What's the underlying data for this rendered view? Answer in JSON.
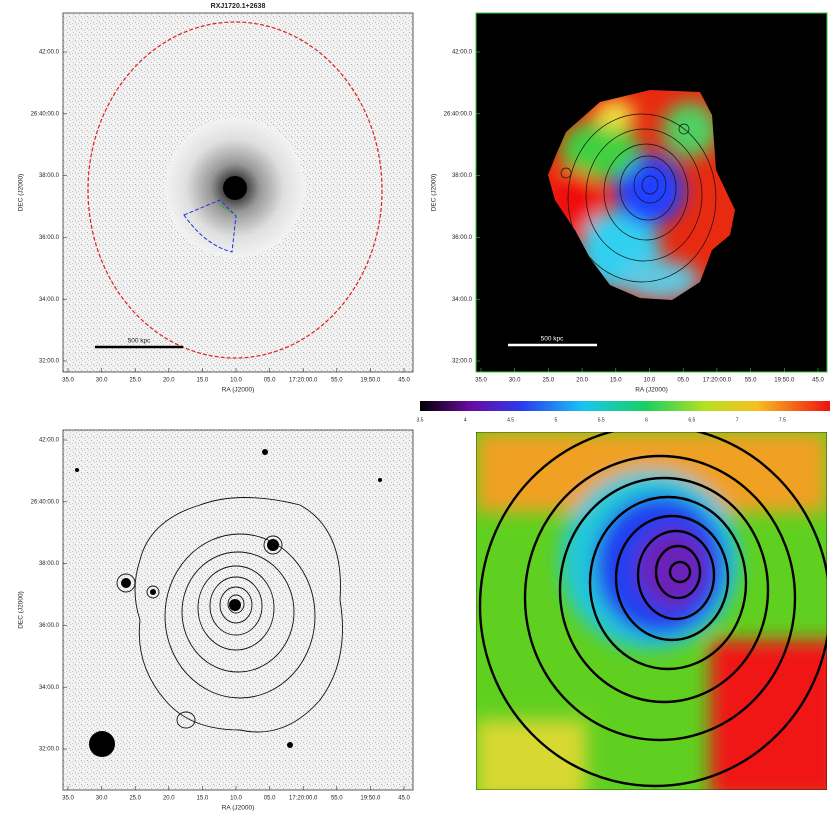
{
  "panels": [
    {
      "title": "RXJ1720.1+2638",
      "x_label": "RA (J2000)",
      "y_label": "DEC (J2000)",
      "x_ticks": [
        "35.0",
        "30.0",
        "25.0",
        "20.0",
        "15.0",
        "10.0",
        "05.0",
        "17:20:00.0",
        "55.0",
        "19:50.0",
        "45.0"
      ],
      "y_ticks": [
        "42:00.0",
        "26:40:00.0",
        "38:00.0",
        "36:00.0",
        "34:00.0",
        "32:00.0"
      ],
      "scale_bar": "500 kpc"
    },
    {
      "x_label": "RA (J2000)",
      "y_label": "DEC (J2000)",
      "x_ticks": [
        "35.0",
        "30.0",
        "25.0",
        "20.0",
        "15.0",
        "10.0",
        "05.0",
        "17:20:00.0",
        "55.0",
        "19:50.0",
        "45.0"
      ],
      "y_ticks": [
        "42:00.0",
        "26:40:00.0",
        "38:00.0",
        "36:00.0",
        "34:00.0",
        "32:00.0"
      ],
      "scale_bar": "500 kpc"
    },
    {
      "x_label": "RA (J2000)",
      "y_label": "DEC (J2000)",
      "x_ticks": [
        "35.0",
        "30.0",
        "25.0",
        "20.0",
        "15.0",
        "10.0",
        "05.0",
        "17:20:00.0",
        "55.0",
        "19:50.0",
        "45.0"
      ],
      "y_ticks": [
        "42:00.0",
        "26:40:00.0",
        "38:00.0",
        "36:00.0",
        "34:00.0",
        "32:00.0"
      ]
    }
  ],
  "colorbar": {
    "ticks": [
      "3.5",
      "4",
      "4.5",
      "5",
      "5.5",
      "6",
      "6.5",
      "7",
      "7.5"
    ]
  }
}
